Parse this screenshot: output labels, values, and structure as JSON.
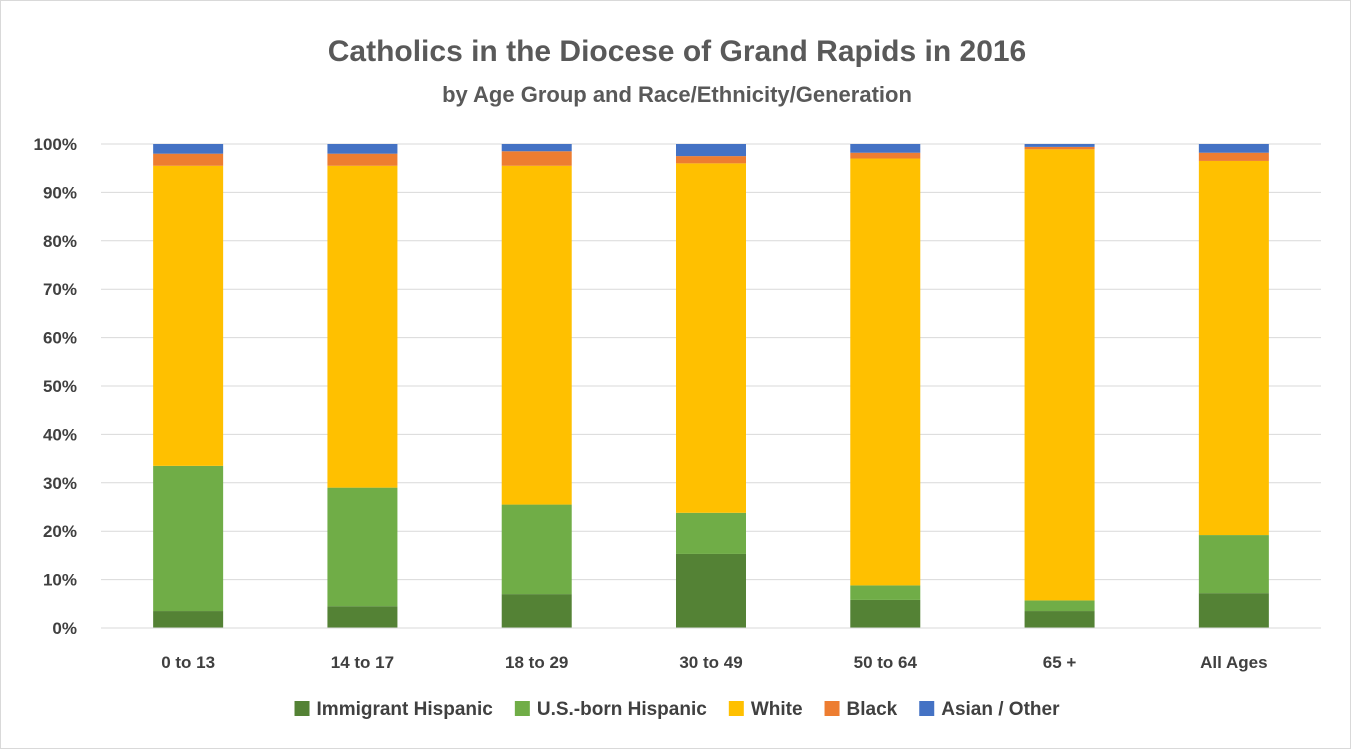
{
  "chart_data": {
    "type": "bar",
    "stacked": true,
    "title": "Catholics in the Diocese of Grand Rapids in 2016",
    "subtitle": "by Age Group and Race/Ethnicity/Generation",
    "categories": [
      "0 to 13",
      "14 to 17",
      "18 to 29",
      "30 to 49",
      "50 to 64",
      "65 +",
      "All Ages"
    ],
    "y_ticks": [
      "0%",
      "10%",
      "20%",
      "30%",
      "40%",
      "50%",
      "60%",
      "70%",
      "80%",
      "90%",
      "100%"
    ],
    "ylim": [
      0,
      100
    ],
    "grid": true,
    "legend_position": "bottom",
    "series": [
      {
        "name": "Immigrant Hispanic",
        "color": "#548235",
        "values": [
          3.5,
          4.5,
          7.0,
          15.3,
          5.8,
          3.5,
          7.2
        ]
      },
      {
        "name": "U.S.-born Hispanic",
        "color": "#70ad47",
        "values": [
          30.0,
          24.5,
          18.5,
          8.5,
          3.0,
          2.2,
          12.0
        ]
      },
      {
        "name": "White",
        "color": "#ffc000",
        "values": [
          62.0,
          66.5,
          70.0,
          72.2,
          88.2,
          93.2,
          77.3
        ]
      },
      {
        "name": "Black",
        "color": "#ed7d31",
        "values": [
          2.5,
          2.5,
          3.0,
          1.5,
          1.2,
          0.5,
          1.7
        ]
      },
      {
        "name": "Asian / Other",
        "color": "#4472c4",
        "values": [
          2.0,
          2.0,
          1.5,
          2.5,
          1.8,
          0.6,
          1.8
        ]
      }
    ]
  }
}
